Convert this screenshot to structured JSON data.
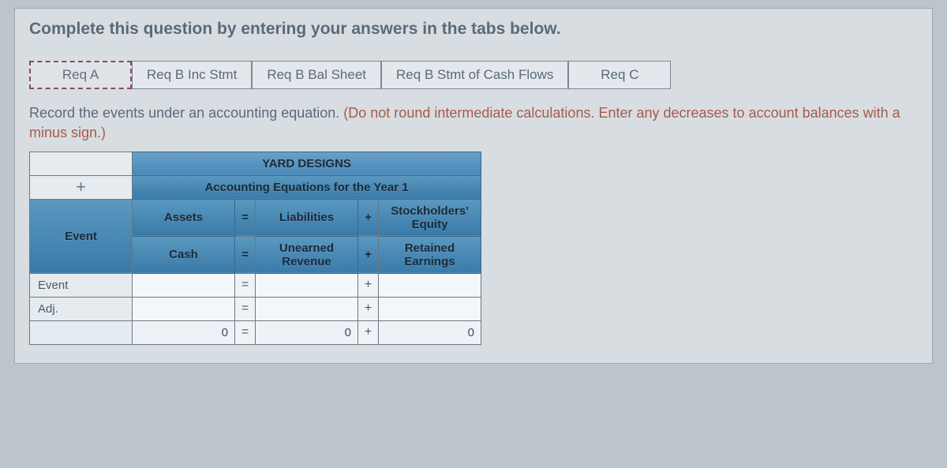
{
  "prompt": "Complete this question by entering your answers in the tabs below.",
  "tabs": [
    {
      "label": "Req A",
      "active": true
    },
    {
      "label": "Req B Inc Stmt",
      "active": false
    },
    {
      "label": "Req B Bal Sheet",
      "active": false
    },
    {
      "label": "Req B Stmt of Cash Flows",
      "active": false
    },
    {
      "label": "Req C",
      "active": false
    }
  ],
  "instruction": {
    "main": "Record the events under an accounting equation. ",
    "hint": "(Do not round intermediate calculations. Enter any decreases to account balances with a minus sign.)"
  },
  "table": {
    "company": "YARD DESIGNS",
    "subtitle": "Accounting Equations for the Year 1",
    "corner_plus": "+",
    "event_header": "Event",
    "col_groups": {
      "assets": "Assets",
      "liabilities": "Liabilities",
      "equity": "Stockholders' Equity"
    },
    "subcols": {
      "cash": "Cash",
      "unearned": "Unearned Revenue",
      "retained": "Retained Earnings"
    },
    "ops": {
      "eq": "=",
      "plus": "+"
    },
    "rows": [
      {
        "label": "Event",
        "cash": "",
        "unearned": "",
        "retained": ""
      },
      {
        "label": "Adj.",
        "cash": "",
        "unearned": "",
        "retained": ""
      }
    ],
    "totals": {
      "cash": "0",
      "unearned": "0",
      "retained": "0"
    }
  }
}
